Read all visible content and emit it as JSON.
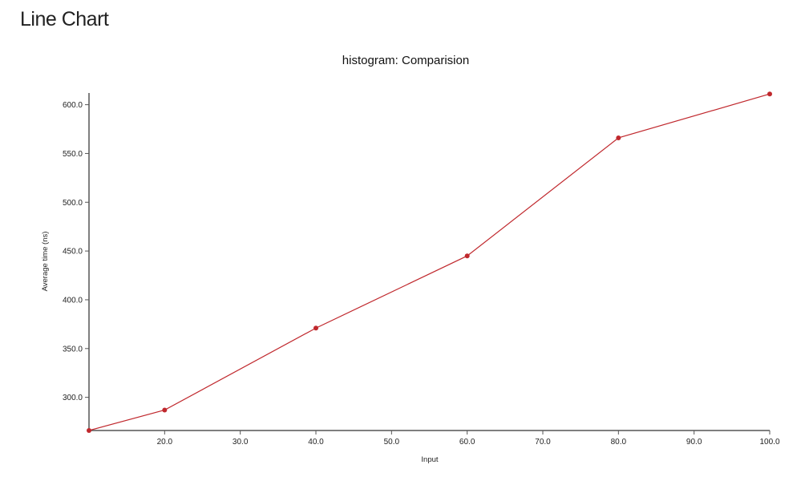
{
  "page": {
    "heading": "Line Chart"
  },
  "colors": {
    "series": "#c0282d",
    "axis": "#555555",
    "text": "#222222"
  },
  "chart_data": {
    "type": "line",
    "title": "histogram: Comparision",
    "xlabel": "Input",
    "ylabel": "Average time (ns)",
    "xlim": [
      10,
      100
    ],
    "ylim": [
      266,
      612
    ],
    "xticks": [
      20,
      30,
      40,
      50,
      60,
      70,
      80,
      90,
      100
    ],
    "xtick_labels": [
      "20.0",
      "30.0",
      "40.0",
      "50.0",
      "60.0",
      "70.0",
      "80.0",
      "90.0",
      "100.0"
    ],
    "yticks": [
      300,
      350,
      400,
      450,
      500,
      550,
      600
    ],
    "ytick_labels": [
      "300.0",
      "350.0",
      "400.0",
      "450.0",
      "500.0",
      "550.0",
      "600.0"
    ],
    "grid": false,
    "series": [
      {
        "x": [
          10,
          20,
          40,
          60,
          80,
          100
        ],
        "y": [
          266,
          287,
          371,
          445,
          566,
          611
        ]
      }
    ]
  }
}
